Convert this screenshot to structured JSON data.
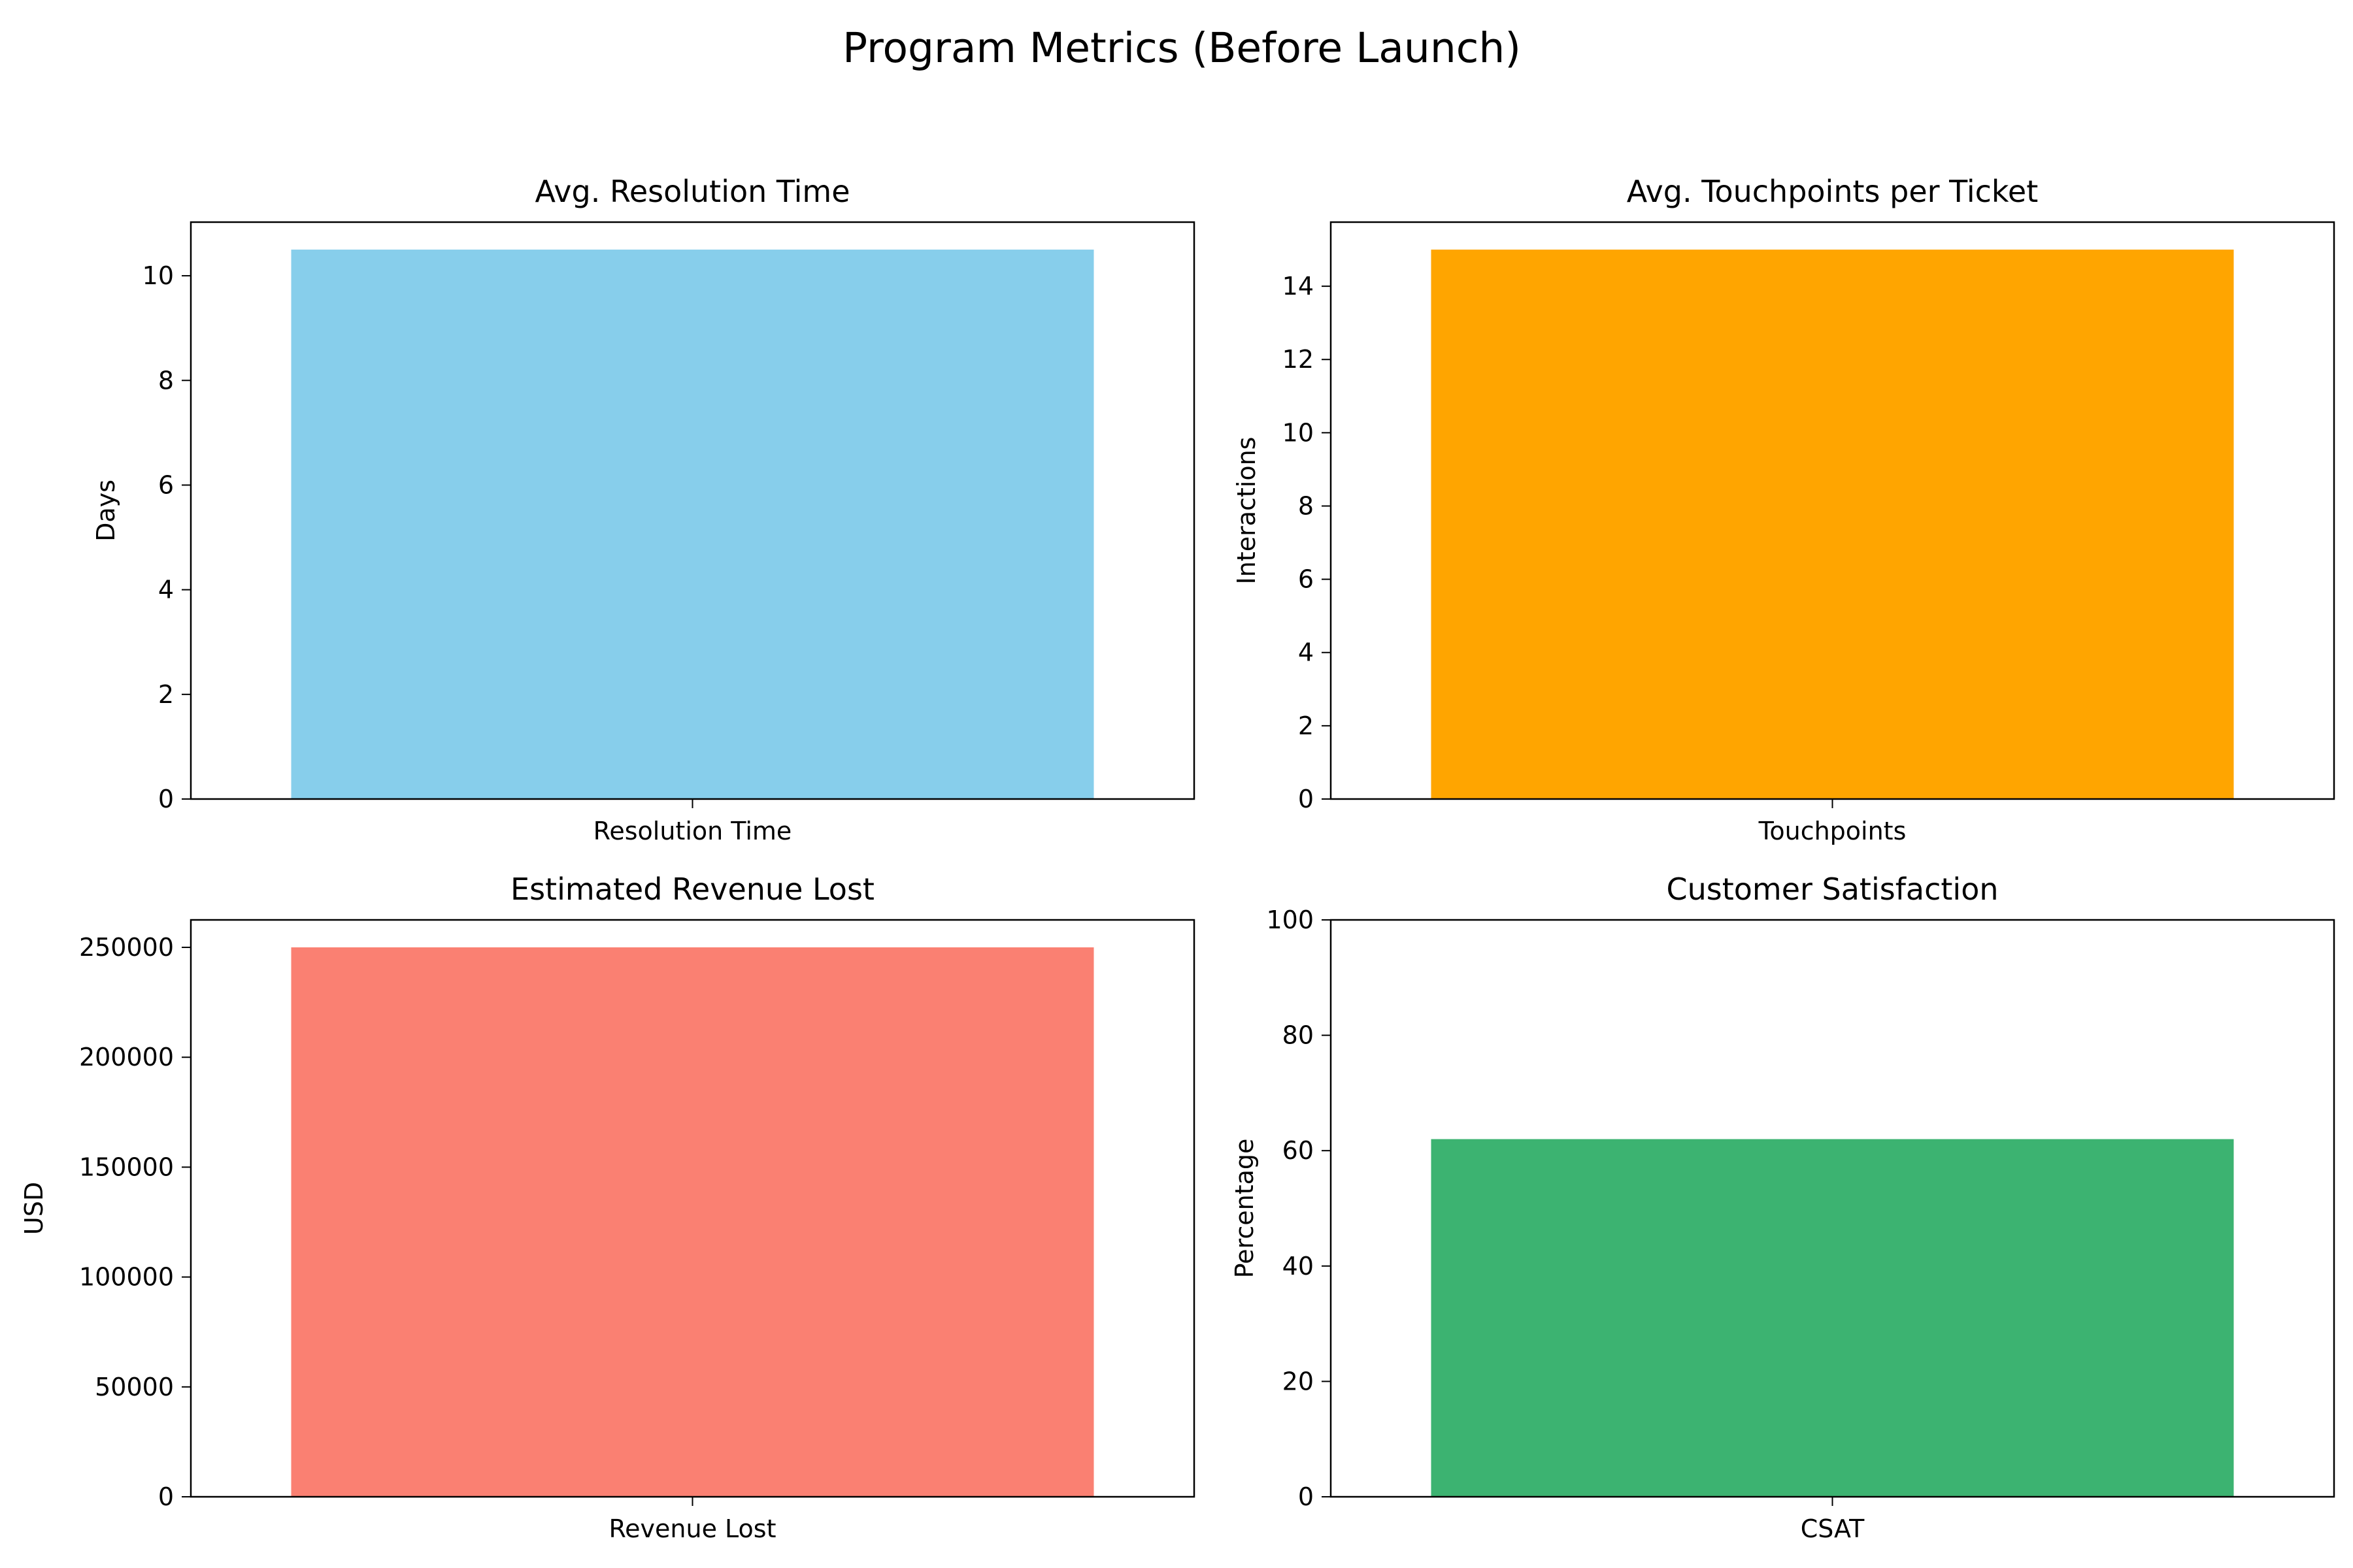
{
  "figure": {
    "title": "Program Metrics (Before Launch)"
  },
  "chart_data": [
    {
      "type": "bar",
      "title": "Avg. Resolution Time",
      "categories": [
        "Resolution Time"
      ],
      "values": [
        10.5
      ],
      "xlabel": "",
      "ylabel": "Days",
      "ylim": [
        0,
        11.025
      ],
      "yticks": [
        0,
        2,
        4,
        6,
        8,
        10
      ],
      "color": "#87CEEB",
      "grid": false
    },
    {
      "type": "bar",
      "title": "Avg. Touchpoints per Ticket",
      "categories": [
        "Touchpoints"
      ],
      "values": [
        15
      ],
      "xlabel": "",
      "ylabel": "Interactions",
      "ylim": [
        0,
        15.75
      ],
      "yticks": [
        0,
        2,
        4,
        6,
        8,
        10,
        12,
        14
      ],
      "color": "#FFA500",
      "grid": false
    },
    {
      "type": "bar",
      "title": "Estimated Revenue Lost",
      "categories": [
        "Revenue Lost"
      ],
      "values": [
        250000
      ],
      "xlabel": "",
      "ylabel": "USD",
      "ylim": [
        0,
        262500
      ],
      "yticks": [
        0,
        50000,
        100000,
        150000,
        200000,
        250000
      ],
      "color": "#FA8072",
      "grid": false
    },
    {
      "type": "bar",
      "title": "Customer Satisfaction",
      "categories": [
        "CSAT"
      ],
      "values": [
        62
      ],
      "xlabel": "",
      "ylabel": "Percentage",
      "ylim": [
        0,
        100
      ],
      "yticks": [
        0,
        20,
        40,
        60,
        80,
        100
      ],
      "color": "#3CB371",
      "grid": false
    }
  ]
}
